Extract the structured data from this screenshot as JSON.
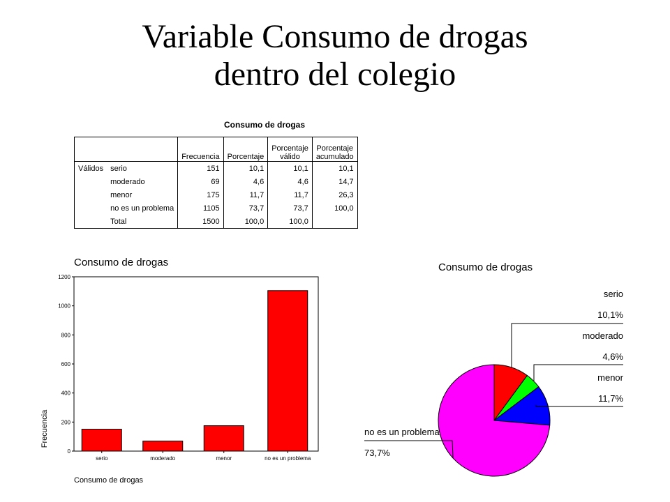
{
  "slide_title": [
    "Variable Consumo de drogas",
    "dentro del colegio"
  ],
  "table": {
    "title": "Consumo de drogas",
    "headers": [
      "",
      "",
      "Frecuencia",
      "Porcentaje",
      "Porcentaje\nválido",
      "Porcentaje\nacumulado"
    ],
    "rows": [
      [
        "Válidos",
        "serio",
        "151",
        "10,1",
        "10,1",
        "10,1"
      ],
      [
        "",
        "moderado",
        "69",
        "4,6",
        "4,6",
        "14,7"
      ],
      [
        "",
        "menor",
        "175",
        "11,7",
        "11,7",
        "26,3"
      ],
      [
        "",
        "no es un problema",
        "1105",
        "73,7",
        "73,7",
        "100,0"
      ],
      [
        "",
        "Total",
        "1500",
        "100,0",
        "100,0",
        ""
      ]
    ]
  },
  "chart_data": [
    {
      "type": "bar",
      "title": "Consumo de drogas",
      "xlabel": "Consumo de drogas",
      "ylabel": "Frecuencia",
      "categories": [
        "serio",
        "moderado",
        "menor",
        "no es un problema"
      ],
      "values": [
        151,
        69,
        175,
        1105
      ],
      "ylim": [
        0,
        1200
      ],
      "yticks": [
        0,
        200,
        400,
        600,
        800,
        1000,
        1200
      ],
      "ytick_labels": [
        "0",
        "200",
        "400",
        "600",
        "800",
        "1000",
        "1200"
      ],
      "bar_color": "#ff0000",
      "grid": false
    },
    {
      "type": "pie",
      "title": "Consumo de drogas",
      "labels": [
        "serio",
        "moderado",
        "menor",
        "no es un problema"
      ],
      "values": [
        10.1,
        4.6,
        11.7,
        73.7
      ],
      "value_labels": [
        "10,1%",
        "4,6%",
        "11,7%",
        "73,7%"
      ],
      "colors": [
        "#ff0000",
        "#00ff00",
        "#0000ff",
        "#ff00ff"
      ]
    }
  ]
}
